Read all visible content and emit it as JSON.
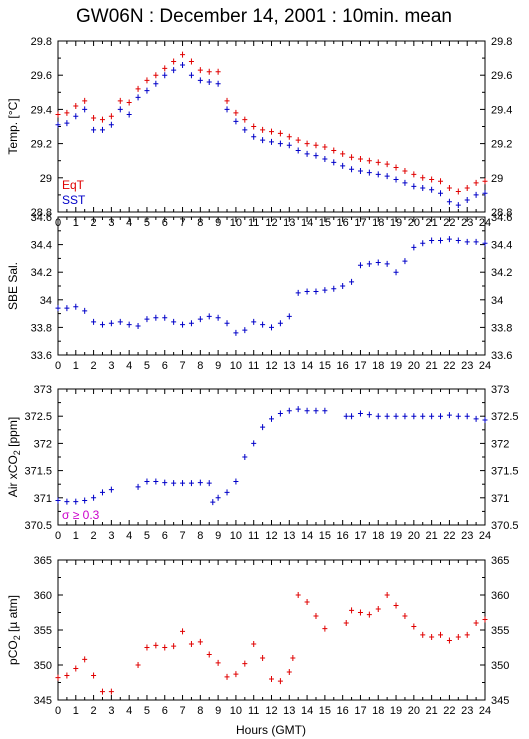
{
  "title": "GW06N : December 14, 2001 : 10min. mean",
  "xlabel": "Hours (GMT)",
  "colors": {
    "axis": "#000000",
    "red": "#e00000",
    "blue": "#0000c8",
    "magenta": "#cc00cc"
  },
  "chart_data": [
    {
      "type": "scatter",
      "ylabel": "Temp. [°C]",
      "xlim": [
        0,
        24
      ],
      "ylim": [
        28.8,
        29.8
      ],
      "xticks": [
        "0",
        "1",
        "2",
        "3",
        "4",
        "5",
        "6",
        "7",
        "8",
        "9",
        "10",
        "11",
        "12",
        "13",
        "14",
        "15",
        "16",
        "17",
        "18",
        "19",
        "20",
        "21",
        "22",
        "23",
        "24"
      ],
      "yticks": [
        "28.8",
        "29",
        "29.2",
        "29.4",
        "29.6",
        "29.8"
      ],
      "legend": [
        "EqT",
        "SST"
      ],
      "series": [
        {
          "name": "EqT",
          "color": "#e00000",
          "x": [
            0,
            0.5,
            1,
            1.5,
            2,
            2.5,
            3,
            3.5,
            4,
            4.5,
            5,
            5.5,
            6,
            6.5,
            7,
            7.5,
            8,
            8.5,
            9,
            9.5,
            10,
            10.5,
            11,
            11.5,
            12,
            12.5,
            13,
            13.5,
            14,
            14.5,
            15,
            15.5,
            16,
            16.5,
            17,
            17.5,
            18,
            18.5,
            19,
            19.5,
            20,
            20.5,
            21,
            21.5,
            22,
            22.5,
            23,
            23.5,
            24
          ],
          "y": [
            29.37,
            29.38,
            29.42,
            29.45,
            29.35,
            29.34,
            29.36,
            29.45,
            29.44,
            29.52,
            29.57,
            29.6,
            29.64,
            29.68,
            29.72,
            29.68,
            29.63,
            29.62,
            29.62,
            29.45,
            29.38,
            29.34,
            29.3,
            29.28,
            29.27,
            29.26,
            29.24,
            29.22,
            29.2,
            29.19,
            29.18,
            29.16,
            29.14,
            29.12,
            29.11,
            29.1,
            29.09,
            29.08,
            29.06,
            29.04,
            29.02,
            29.0,
            28.99,
            28.98,
            28.94,
            28.92,
            28.94,
            28.97,
            28.98
          ]
        },
        {
          "name": "SST",
          "color": "#0000c8",
          "x": [
            0,
            0.5,
            1,
            1.5,
            2,
            2.5,
            3,
            3.5,
            4,
            4.5,
            5,
            5.5,
            6,
            6.5,
            7,
            7.5,
            8,
            8.5,
            9,
            9.5,
            10,
            10.5,
            11,
            11.5,
            12,
            12.5,
            13,
            13.5,
            14,
            14.5,
            15,
            15.5,
            16,
            16.5,
            17,
            17.5,
            18,
            18.5,
            19,
            19.5,
            20,
            20.5,
            21,
            21.5,
            22,
            22.5,
            23,
            23.5,
            24
          ],
          "y": [
            29.31,
            29.32,
            29.36,
            29.4,
            29.28,
            29.28,
            29.31,
            29.4,
            29.37,
            29.47,
            29.51,
            29.55,
            29.6,
            29.63,
            29.66,
            29.6,
            29.57,
            29.56,
            29.55,
            29.4,
            29.33,
            29.28,
            29.24,
            29.22,
            29.21,
            29.2,
            29.19,
            29.16,
            29.14,
            29.13,
            29.11,
            29.09,
            29.07,
            29.05,
            29.04,
            29.03,
            29.02,
            29.01,
            28.99,
            28.97,
            28.95,
            28.94,
            28.93,
            28.91,
            28.86,
            28.84,
            28.87,
            28.9,
            28.91
          ]
        }
      ]
    },
    {
      "type": "scatter",
      "ylabel": "SBE Sal.",
      "xlim": [
        0,
        24
      ],
      "ylim": [
        33.6,
        34.6
      ],
      "xticks": [
        "0",
        "1",
        "2",
        "3",
        "4",
        "5",
        "6",
        "7",
        "8",
        "9",
        "10",
        "11",
        "12",
        "13",
        "14",
        "15",
        "16",
        "17",
        "18",
        "19",
        "20",
        "21",
        "22",
        "23",
        "24"
      ],
      "yticks": [
        "33.6",
        "33.8",
        "34",
        "34.2",
        "34.4",
        "34.6"
      ],
      "series": [
        {
          "color": "#0000c8",
          "x": [
            0,
            0.5,
            1,
            1.5,
            2,
            2.5,
            3,
            3.5,
            4,
            4.5,
            5,
            5.5,
            6,
            6.5,
            7,
            7.5,
            8,
            8.5,
            9,
            9.5,
            10,
            10.5,
            11,
            11.5,
            12,
            12.5,
            13,
            13.5,
            14,
            14.5,
            15,
            15.5,
            16,
            16.5,
            17,
            17.5,
            18,
            18.5,
            19,
            19.5,
            20,
            20.5,
            21,
            21.5,
            22,
            22.5,
            23,
            23.5,
            24
          ],
          "y": [
            33.94,
            33.94,
            33.95,
            33.92,
            33.84,
            33.82,
            33.83,
            33.84,
            33.82,
            33.81,
            33.86,
            33.87,
            33.87,
            33.84,
            33.82,
            33.83,
            33.86,
            33.88,
            33.87,
            33.83,
            33.76,
            33.78,
            33.84,
            33.82,
            33.8,
            33.83,
            33.88,
            34.05,
            34.06,
            34.06,
            34.07,
            34.08,
            34.1,
            34.13,
            34.25,
            34.26,
            34.27,
            34.26,
            34.2,
            34.28,
            34.38,
            34.41,
            34.43,
            34.43,
            34.44,
            34.43,
            34.42,
            34.42,
            34.41
          ]
        }
      ]
    },
    {
      "type": "scatter",
      "ylabel": "Air xCO2 [ppm]",
      "ylabel_main": "Air xCO",
      "ylabel_sub": "2",
      "ylabel_unit": " [ppm]",
      "xlim": [
        0,
        24
      ],
      "ylim": [
        370.5,
        373
      ],
      "xticks": [
        "0",
        "1",
        "2",
        "3",
        "4",
        "5",
        "6",
        "7",
        "8",
        "9",
        "10",
        "11",
        "12",
        "13",
        "14",
        "15",
        "16",
        "17",
        "18",
        "19",
        "20",
        "21",
        "22",
        "23",
        "24"
      ],
      "yticks": [
        "370.5",
        "371",
        "371.5",
        "372",
        "372.5",
        "373"
      ],
      "annotation": "σ ≥ 0.3",
      "series": [
        {
          "color": "#0000c8",
          "x": [
            0,
            0.5,
            1,
            1.5,
            2,
            2.5,
            3,
            4.5,
            5,
            5.5,
            6,
            6.5,
            7,
            7.5,
            8,
            8.5,
            8.7,
            9,
            9.5,
            10,
            10.5,
            11,
            11.5,
            12,
            12.5,
            13,
            13.5,
            14,
            14.5,
            15,
            16.2,
            16.5,
            17,
            17.5,
            18,
            18.5,
            19,
            19.5,
            20,
            20.5,
            21,
            21.5,
            22,
            22.5,
            23,
            23.5,
            24
          ],
          "y": [
            370.95,
            370.93,
            370.93,
            370.95,
            371.0,
            371.1,
            371.15,
            371.2,
            371.3,
            371.3,
            371.28,
            371.27,
            371.27,
            371.27,
            371.28,
            371.27,
            370.92,
            371.0,
            371.1,
            371.3,
            371.75,
            372.0,
            372.3,
            372.45,
            372.55,
            372.6,
            372.63,
            372.6,
            372.6,
            372.6,
            372.5,
            372.5,
            372.55,
            372.53,
            372.5,
            372.5,
            372.5,
            372.5,
            372.5,
            372.5,
            372.5,
            372.5,
            372.52,
            372.5,
            372.5,
            372.45,
            372.43
          ]
        }
      ]
    },
    {
      "type": "scatter",
      "ylabel": "pCO2 [µatm]",
      "ylabel_main": "pCO",
      "ylabel_sub": "2",
      "ylabel_unit": " [µ atm]",
      "xlim": [
        0,
        24
      ],
      "ylim": [
        345,
        365
      ],
      "xticks": [
        "0",
        "1",
        "2",
        "3",
        "4",
        "5",
        "6",
        "7",
        "8",
        "9",
        "10",
        "11",
        "12",
        "13",
        "14",
        "15",
        "16",
        "17",
        "18",
        "19",
        "20",
        "21",
        "22",
        "23",
        "24"
      ],
      "yticks": [
        "345",
        "350",
        "355",
        "360",
        "365"
      ],
      "series": [
        {
          "color": "#e00000",
          "x": [
            0,
            0.5,
            1,
            1.5,
            2,
            2.5,
            3,
            4.5,
            5,
            5.5,
            6,
            6.5,
            7,
            7.5,
            8,
            8.5,
            9,
            9.5,
            10,
            10.5,
            11,
            11.5,
            12,
            12.5,
            13,
            13.2,
            13.5,
            14,
            14.5,
            15,
            16.2,
            16.5,
            17,
            17.5,
            18,
            18.5,
            19,
            19.5,
            20,
            20.5,
            21,
            21.5,
            22,
            22.5,
            23,
            23.5,
            24
          ],
          "y": [
            348.2,
            348.5,
            349.5,
            350.8,
            348.5,
            346.2,
            346.2,
            350,
            352.5,
            352.8,
            352.5,
            352.7,
            354.8,
            353,
            353.3,
            351.5,
            350.3,
            348.3,
            348.7,
            350.2,
            353,
            351,
            348,
            347.7,
            349,
            351,
            360,
            359,
            357,
            355.2,
            356,
            357.8,
            357.5,
            357.2,
            358,
            360,
            358.5,
            357,
            355.5,
            354.3,
            354,
            354.3,
            353.5,
            354,
            354.3,
            356,
            356.5
          ]
        }
      ]
    }
  ]
}
